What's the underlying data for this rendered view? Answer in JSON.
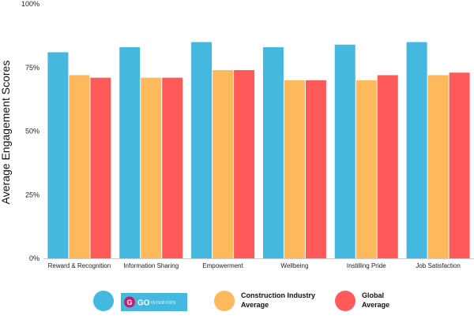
{
  "chart_data": {
    "type": "bar",
    "ylabel": "Average Engagement Scores",
    "ylim": [
      0,
      100
    ],
    "y_ticks": [
      {
        "value": 0,
        "label": "0%"
      },
      {
        "value": 25,
        "label": "25%"
      },
      {
        "value": 50,
        "label": "50%"
      },
      {
        "value": 75,
        "label": "75%"
      },
      {
        "value": 100,
        "label": "100%"
      }
    ],
    "categories": [
      "Reward & Recognition",
      "Information Sharing",
      "Empowerment",
      "Wellbeing",
      "Instilling Pride",
      "Job Satisfaction"
    ],
    "series": [
      {
        "name": "GO INTERIORS",
        "color": "#45b8e0",
        "values": [
          81,
          83,
          85,
          83,
          84,
          85
        ]
      },
      {
        "name": "Construction Industry Average",
        "color": "#fdb95c",
        "values": [
          72,
          71,
          74,
          70,
          70,
          72
        ]
      },
      {
        "name": "Global Average",
        "color": "#ff5a5a",
        "values": [
          71,
          71,
          74,
          70,
          72,
          73
        ]
      }
    ],
    "grid": false,
    "legend": "bottom"
  },
  "legend": {
    "logo": {
      "letter": "G",
      "main": "GO",
      "sub": "INTERIORS",
      "background": "#45b8e0"
    },
    "items": [
      {
        "line1": "Construction Industry",
        "line2": "Average"
      },
      {
        "line1": "Global",
        "line2": "Average"
      }
    ]
  }
}
